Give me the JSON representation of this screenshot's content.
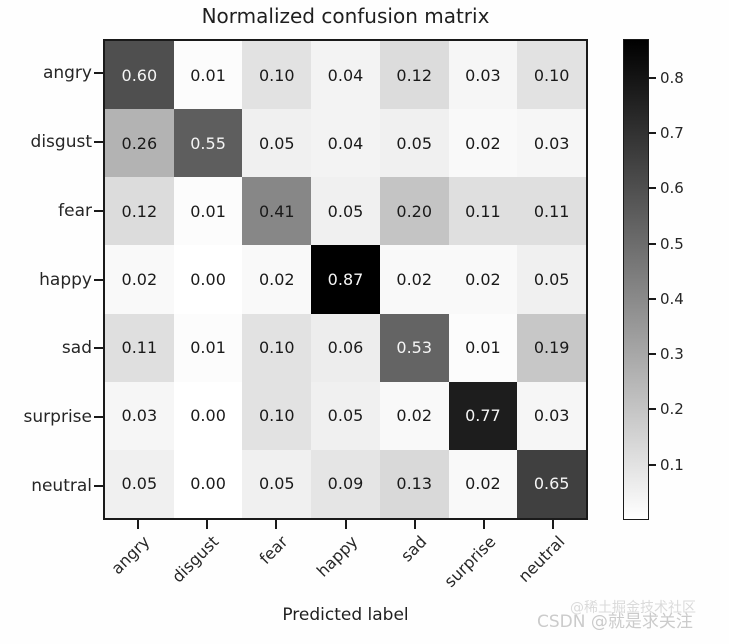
{
  "chart_data": {
    "type": "heatmap",
    "title": "Normalized confusion matrix",
    "xlabel": "Predicted label",
    "ylabel": "",
    "categories": [
      "angry",
      "disgust",
      "fear",
      "happy",
      "sad",
      "surprise",
      "neutral"
    ],
    "matrix": [
      [
        0.6,
        0.01,
        0.1,
        0.04,
        0.12,
        0.03,
        0.1
      ],
      [
        0.26,
        0.55,
        0.05,
        0.04,
        0.05,
        0.02,
        0.03
      ],
      [
        0.12,
        0.01,
        0.41,
        0.05,
        0.2,
        0.11,
        0.11
      ],
      [
        0.02,
        0.0,
        0.02,
        0.87,
        0.02,
        0.02,
        0.05
      ],
      [
        0.11,
        0.01,
        0.1,
        0.06,
        0.53,
        0.01,
        0.19
      ],
      [
        0.03,
        0.0,
        0.1,
        0.05,
        0.02,
        0.77,
        0.03
      ],
      [
        0.05,
        0.0,
        0.05,
        0.09,
        0.13,
        0.02,
        0.65
      ]
    ],
    "value_decimals": 2,
    "colormap": "grayscale white-to-black",
    "vmin": 0.0,
    "vmax": 0.87,
    "cell_text_threshold": 0.435,
    "colorbar_ticks": [
      0.1,
      0.2,
      0.3,
      0.4,
      0.5,
      0.6,
      0.7,
      0.8
    ],
    "legend_position": "colorbar-right",
    "grid": false
  },
  "colors": {
    "axis": "#1a1a1a",
    "cell_text_dark": "#1a1a1a",
    "cell_text_light": "#f5f5f5",
    "watermark": "#cbcbcb"
  },
  "watermark": {
    "line1": "@稀土掘金技术社区",
    "line2": "CSDN @就是求关注"
  }
}
